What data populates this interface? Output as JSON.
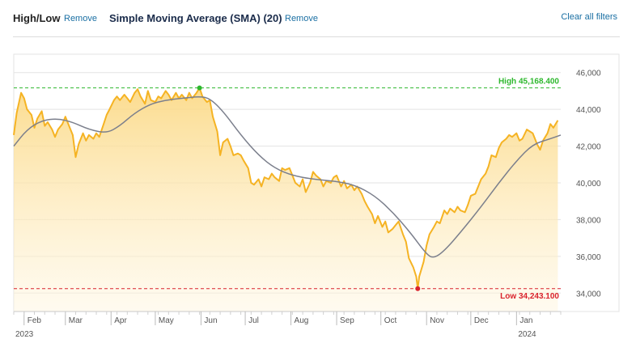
{
  "filters": {
    "highlow_label": "High/Low",
    "highlow_remove": "Remove",
    "sma_label": "Simple Moving Average (SMA) (20)",
    "sma_remove": "Remove",
    "clear_all": "Clear all filters"
  },
  "colors": {
    "price_line": "#f5b323",
    "area_fill": "#fdeec5",
    "sma_line": "#7b7f8c",
    "high": "#2eb82e",
    "low": "#d9232d",
    "grid": "#e3e3e3"
  },
  "chart_data": {
    "type": "area",
    "y_ticks": [
      "46,000",
      "44,000",
      "42,000",
      "40,000",
      "38,000",
      "36,000",
      "34,000"
    ],
    "y_tick_values": [
      46000,
      44000,
      42000,
      40000,
      38000,
      36000,
      34000
    ],
    "ylim": [
      33000,
      47000
    ],
    "x_range": [
      "2023-01-25",
      "2024-01-31"
    ],
    "x_ticks": [
      {
        "label": "Feb",
        "date": "2023-02-01"
      },
      {
        "label": "Mar",
        "date": "2023-03-01"
      },
      {
        "label": "Apr",
        "date": "2023-04-01"
      },
      {
        "label": "May",
        "date": "2023-05-01"
      },
      {
        "label": "Jun",
        "date": "2023-06-01"
      },
      {
        "label": "Jul",
        "date": "2023-07-01"
      },
      {
        "label": "Aug",
        "date": "2023-08-01"
      },
      {
        "label": "Sep",
        "date": "2023-09-01"
      },
      {
        "label": "Oct",
        "date": "2023-10-01"
      },
      {
        "label": "Nov",
        "date": "2023-11-01"
      },
      {
        "label": "Dec",
        "date": "2023-12-01"
      },
      {
        "label": "Jan",
        "date": "2024-01-01"
      }
    ],
    "year_labels": [
      {
        "label": "2023",
        "date": "2023-01-25"
      },
      {
        "label": "2024",
        "date": "2024-01-01"
      }
    ],
    "high": {
      "label": "High 45,168.400",
      "value": 45168.4,
      "date": "2023-05-31"
    },
    "low": {
      "label": "Low 34,243.100",
      "value": 34243.1,
      "date": "2023-10-26"
    },
    "series": [
      {
        "type": "area",
        "points": [
          [
            "2023-01-25",
            42600
          ],
          [
            "2023-01-27",
            43800
          ],
          [
            "2023-01-30",
            44900
          ],
          [
            "2023-02-01",
            44600
          ],
          [
            "2023-02-03",
            44000
          ],
          [
            "2023-02-06",
            43700
          ],
          [
            "2023-02-08",
            43000
          ],
          [
            "2023-02-10",
            43500
          ],
          [
            "2023-02-13",
            43900
          ],
          [
            "2023-02-15",
            43100
          ],
          [
            "2023-02-17",
            43300
          ],
          [
            "2023-02-20",
            42900
          ],
          [
            "2023-02-22",
            42500
          ],
          [
            "2023-02-24",
            42900
          ],
          [
            "2023-02-27",
            43200
          ],
          [
            "2023-03-01",
            43600
          ],
          [
            "2023-03-03",
            43200
          ],
          [
            "2023-03-06",
            42600
          ],
          [
            "2023-03-08",
            41400
          ],
          [
            "2023-03-10",
            42100
          ],
          [
            "2023-03-13",
            42700
          ],
          [
            "2023-03-15",
            42300
          ],
          [
            "2023-03-17",
            42600
          ],
          [
            "2023-03-20",
            42400
          ],
          [
            "2023-03-22",
            42700
          ],
          [
            "2023-03-24",
            42500
          ],
          [
            "2023-03-27",
            43200
          ],
          [
            "2023-03-29",
            43700
          ],
          [
            "2023-03-31",
            44000
          ],
          [
            "2023-04-03",
            44500
          ],
          [
            "2023-04-05",
            44700
          ],
          [
            "2023-04-07",
            44500
          ],
          [
            "2023-04-10",
            44800
          ],
          [
            "2023-04-12",
            44600
          ],
          [
            "2023-04-14",
            44400
          ],
          [
            "2023-04-17",
            44900
          ],
          [
            "2023-04-19",
            45100
          ],
          [
            "2023-04-21",
            44700
          ],
          [
            "2023-04-24",
            44300
          ],
          [
            "2023-04-26",
            45000
          ],
          [
            "2023-04-28",
            44500
          ],
          [
            "2023-05-01",
            44400
          ],
          [
            "2023-05-03",
            44700
          ],
          [
            "2023-05-05",
            44600
          ],
          [
            "2023-05-08",
            45000
          ],
          [
            "2023-05-10",
            44800
          ],
          [
            "2023-05-12",
            44500
          ],
          [
            "2023-05-15",
            44900
          ],
          [
            "2023-05-17",
            44600
          ],
          [
            "2023-05-19",
            44800
          ],
          [
            "2023-05-22",
            44500
          ],
          [
            "2023-05-24",
            44900
          ],
          [
            "2023-05-26",
            44600
          ],
          [
            "2023-05-29",
            44900
          ],
          [
            "2023-05-31",
            45168.4
          ],
          [
            "2023-06-02",
            44700
          ],
          [
            "2023-06-05",
            44400
          ],
          [
            "2023-06-07",
            44500
          ],
          [
            "2023-06-09",
            43600
          ],
          [
            "2023-06-12",
            42800
          ],
          [
            "2023-06-14",
            41500
          ],
          [
            "2023-06-16",
            42200
          ],
          [
            "2023-06-19",
            42400
          ],
          [
            "2023-06-21",
            42000
          ],
          [
            "2023-06-23",
            41500
          ],
          [
            "2023-06-26",
            41600
          ],
          [
            "2023-06-28",
            41500
          ],
          [
            "2023-06-30",
            41200
          ],
          [
            "2023-07-03",
            40800
          ],
          [
            "2023-07-05",
            40000
          ],
          [
            "2023-07-07",
            39900
          ],
          [
            "2023-07-10",
            40200
          ],
          [
            "2023-07-12",
            39800
          ],
          [
            "2023-07-14",
            40300
          ],
          [
            "2023-07-17",
            40200
          ],
          [
            "2023-07-19",
            40500
          ],
          [
            "2023-07-21",
            40300
          ],
          [
            "2023-07-24",
            40100
          ],
          [
            "2023-07-26",
            40800
          ],
          [
            "2023-07-28",
            40700
          ],
          [
            "2023-07-31",
            40800
          ],
          [
            "2023-08-02",
            40400
          ],
          [
            "2023-08-04",
            40000
          ],
          [
            "2023-08-07",
            39800
          ],
          [
            "2023-08-09",
            40200
          ],
          [
            "2023-08-11",
            39500
          ],
          [
            "2023-08-14",
            40000
          ],
          [
            "2023-08-16",
            40600
          ],
          [
            "2023-08-18",
            40400
          ],
          [
            "2023-08-21",
            40200
          ],
          [
            "2023-08-23",
            39800
          ],
          [
            "2023-08-25",
            40100
          ],
          [
            "2023-08-28",
            40000
          ],
          [
            "2023-08-30",
            40300
          ],
          [
            "2023-09-01",
            40400
          ],
          [
            "2023-09-04",
            39800
          ],
          [
            "2023-09-06",
            40100
          ],
          [
            "2023-09-08",
            39700
          ],
          [
            "2023-09-11",
            39900
          ],
          [
            "2023-09-13",
            39600
          ],
          [
            "2023-09-15",
            39800
          ],
          [
            "2023-09-18",
            39400
          ],
          [
            "2023-09-20",
            39000
          ],
          [
            "2023-09-22",
            38700
          ],
          [
            "2023-09-25",
            38300
          ],
          [
            "2023-09-27",
            37800
          ],
          [
            "2023-09-29",
            38200
          ],
          [
            "2023-10-02",
            37600
          ],
          [
            "2023-10-04",
            37900
          ],
          [
            "2023-10-06",
            37300
          ],
          [
            "2023-10-09",
            37500
          ],
          [
            "2023-10-11",
            37700
          ],
          [
            "2023-10-13",
            37900
          ],
          [
            "2023-10-16",
            37200
          ],
          [
            "2023-10-18",
            36800
          ],
          [
            "2023-10-20",
            35900
          ],
          [
            "2023-10-23",
            35400
          ],
          [
            "2023-10-25",
            34900
          ],
          [
            "2023-10-26",
            34243.1
          ],
          [
            "2023-10-27",
            34900
          ],
          [
            "2023-10-30",
            35700
          ],
          [
            "2023-11-01",
            36600
          ],
          [
            "2023-11-03",
            37200
          ],
          [
            "2023-11-06",
            37600
          ],
          [
            "2023-11-08",
            37900
          ],
          [
            "2023-11-10",
            37800
          ],
          [
            "2023-11-13",
            38500
          ],
          [
            "2023-11-15",
            38300
          ],
          [
            "2023-11-17",
            38600
          ],
          [
            "2023-11-20",
            38400
          ],
          [
            "2023-11-22",
            38700
          ],
          [
            "2023-11-24",
            38500
          ],
          [
            "2023-11-27",
            38400
          ],
          [
            "2023-11-29",
            38800
          ],
          [
            "2023-12-01",
            39300
          ],
          [
            "2023-12-04",
            39400
          ],
          [
            "2023-12-06",
            39800
          ],
          [
            "2023-12-08",
            40200
          ],
          [
            "2023-12-11",
            40500
          ],
          [
            "2023-12-13",
            40900
          ],
          [
            "2023-12-15",
            41500
          ],
          [
            "2023-12-18",
            41400
          ],
          [
            "2023-12-20",
            41900
          ],
          [
            "2023-12-22",
            42200
          ],
          [
            "2023-12-25",
            42400
          ],
          [
            "2023-12-27",
            42600
          ],
          [
            "2023-12-29",
            42500
          ],
          [
            "2024-01-01",
            42700
          ],
          [
            "2024-01-03",
            42300
          ],
          [
            "2024-01-05",
            42400
          ],
          [
            "2024-01-08",
            42900
          ],
          [
            "2024-01-10",
            42800
          ],
          [
            "2024-01-12",
            42700
          ],
          [
            "2024-01-15",
            42100
          ],
          [
            "2024-01-17",
            41800
          ],
          [
            "2024-01-19",
            42300
          ],
          [
            "2024-01-22",
            42700
          ],
          [
            "2024-01-24",
            43200
          ],
          [
            "2024-01-26",
            43000
          ],
          [
            "2024-01-29",
            43400
          ]
        ]
      },
      {
        "name": "Simple Moving Average (SMA) (20)",
        "type": "line",
        "points": [
          [
            "2023-01-25",
            42000
          ],
          [
            "2023-02-03",
            42900
          ],
          [
            "2023-02-13",
            43400
          ],
          [
            "2023-02-24",
            43500
          ],
          [
            "2023-03-06",
            43300
          ],
          [
            "2023-03-17",
            42900
          ],
          [
            "2023-03-29",
            42700
          ],
          [
            "2023-04-07",
            43100
          ],
          [
            "2023-04-17",
            43800
          ],
          [
            "2023-04-28",
            44300
          ],
          [
            "2023-05-08",
            44500
          ],
          [
            "2023-05-19",
            44600
          ],
          [
            "2023-05-31",
            44700
          ],
          [
            "2023-06-07",
            44600
          ],
          [
            "2023-06-16",
            43900
          ],
          [
            "2023-06-28",
            42600
          ],
          [
            "2023-07-10",
            41500
          ],
          [
            "2023-07-21",
            40800
          ],
          [
            "2023-08-02",
            40400
          ],
          [
            "2023-08-16",
            40200
          ],
          [
            "2023-08-30",
            40100
          ],
          [
            "2023-09-13",
            39900
          ],
          [
            "2023-09-27",
            39300
          ],
          [
            "2023-10-09",
            38400
          ],
          [
            "2023-10-20",
            37400
          ],
          [
            "2023-11-01",
            36100
          ],
          [
            "2023-11-06",
            35900
          ],
          [
            "2023-11-13",
            36300
          ],
          [
            "2023-11-24",
            37300
          ],
          [
            "2023-12-08",
            38700
          ],
          [
            "2023-12-20",
            40000
          ],
          [
            "2024-01-01",
            41200
          ],
          [
            "2024-01-12",
            42100
          ],
          [
            "2024-01-24",
            42400
          ],
          [
            "2024-01-31",
            42600
          ]
        ]
      }
    ]
  }
}
